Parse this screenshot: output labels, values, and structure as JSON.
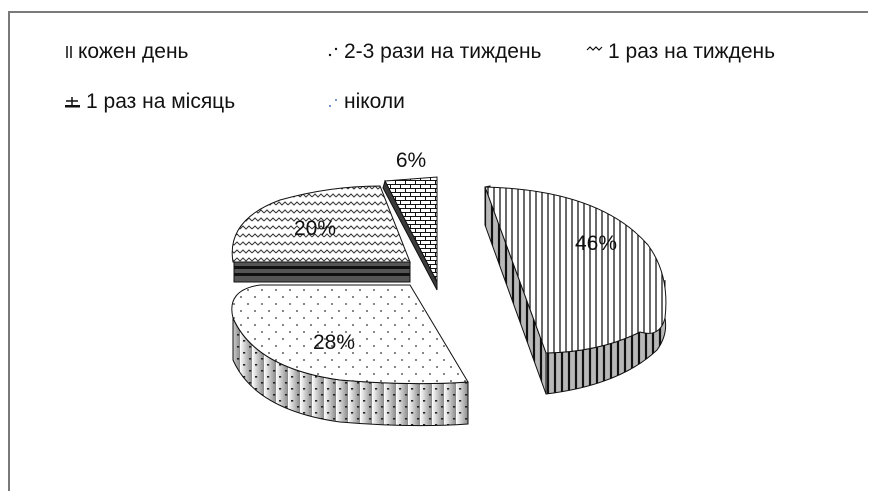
{
  "chart_data": {
    "type": "pie",
    "variant": "3d-exploded",
    "title": "",
    "categories": [
      "кожен день",
      "2-3 рази на тиждень",
      "1 раз на тиждень",
      "1 раз на місяць",
      "ніколи"
    ],
    "values": [
      46,
      28,
      20,
      0,
      6
    ],
    "data_labels": [
      "46%",
      "28%",
      "20%",
      "",
      "6%"
    ],
    "legend_position": "top",
    "fill_patterns": [
      "vertical-lines",
      "dots",
      "zigzag",
      "solid-dark",
      "bricks"
    ]
  }
}
